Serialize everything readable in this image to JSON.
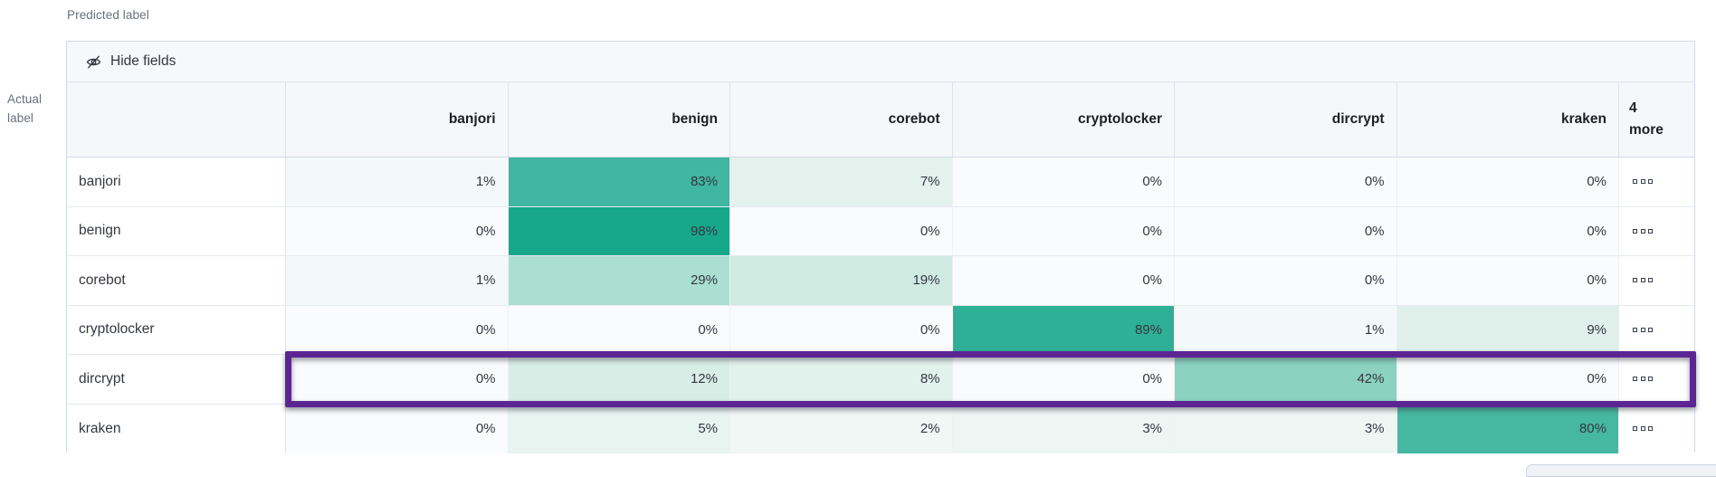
{
  "axis": {
    "predicted": "Predicted label",
    "actual_line1": "Actual",
    "actual_line2": "label"
  },
  "toolbar": {
    "hide_fields_label": "Hide fields",
    "hide_fields_icon": "eye-slash-icon"
  },
  "columns": [
    "banjori",
    "benign",
    "corebot",
    "cryptolocker",
    "dircrypt",
    "kraken"
  ],
  "more_column": {
    "count": "4",
    "label": "more"
  },
  "value_suffix": "%",
  "row_actions_icon": "boxes-horizontal-icon",
  "rows": [
    {
      "label": "banjori",
      "values": [
        1,
        83,
        7,
        0,
        0,
        0
      ],
      "highlight": false
    },
    {
      "label": "benign",
      "values": [
        0,
        98,
        0,
        0,
        0,
        0
      ],
      "highlight": false
    },
    {
      "label": "corebot",
      "values": [
        1,
        29,
        19,
        0,
        0,
        0
      ],
      "highlight": false
    },
    {
      "label": "cryptolocker",
      "values": [
        0,
        0,
        0,
        89,
        1,
        9
      ],
      "highlight": false
    },
    {
      "label": "dircrypt",
      "values": [
        0,
        12,
        8,
        0,
        42,
        0
      ],
      "highlight": true
    },
    {
      "label": "kraken",
      "values": [
        0,
        5,
        2,
        3,
        3,
        80
      ],
      "highlight": false
    }
  ],
  "colors": {
    "highlight_border": "#5c2593",
    "header_bg": "#f5f7fa",
    "toolbar_bg": "#f6f8fb",
    "outer_border": "#d3dae6",
    "text": "#343741",
    "secondary_text": "#69707d",
    "heat_full": "#17a88c"
  },
  "heat_colors": {
    "0": "#fafbfd",
    "1": "#f3f9f8",
    "2": "#f0f7f5",
    "3": "#edf6f3",
    "5": "#e8f4f0",
    "7": "#e3f2ed",
    "8": "#e1f1ec",
    "9": "#dff0ea",
    "12": "#d8ede5",
    "19": "#cfeae1",
    "29": "#aadfd1",
    "42": "#8bd2c1",
    "80": "#46b8a1",
    "83": "#41b6a0",
    "89": "#2eb096",
    "98": "#17a88c"
  },
  "chart_data": {
    "type": "heatmap",
    "xlabel": "Predicted label",
    "ylabel": "Actual label",
    "x_categories": [
      "banjori",
      "benign",
      "corebot",
      "cryptolocker",
      "dircrypt",
      "kraken"
    ],
    "x_hidden_categories_note": "4 more",
    "y_categories": [
      "banjori",
      "benign",
      "corebot",
      "cryptolocker",
      "dircrypt",
      "kraken"
    ],
    "values_percent": [
      [
        1,
        83,
        7,
        0,
        0,
        0
      ],
      [
        0,
        98,
        0,
        0,
        0,
        0
      ],
      [
        1,
        29,
        19,
        0,
        0,
        0
      ],
      [
        0,
        0,
        0,
        89,
        1,
        9
      ],
      [
        0,
        12,
        8,
        0,
        42,
        0
      ],
      [
        0,
        5,
        2,
        3,
        3,
        80
      ]
    ],
    "highlighted_row": "dircrypt",
    "color_scale": [
      "#ffffff",
      "#17a88c"
    ],
    "legend_position": "none",
    "grid": true
  }
}
